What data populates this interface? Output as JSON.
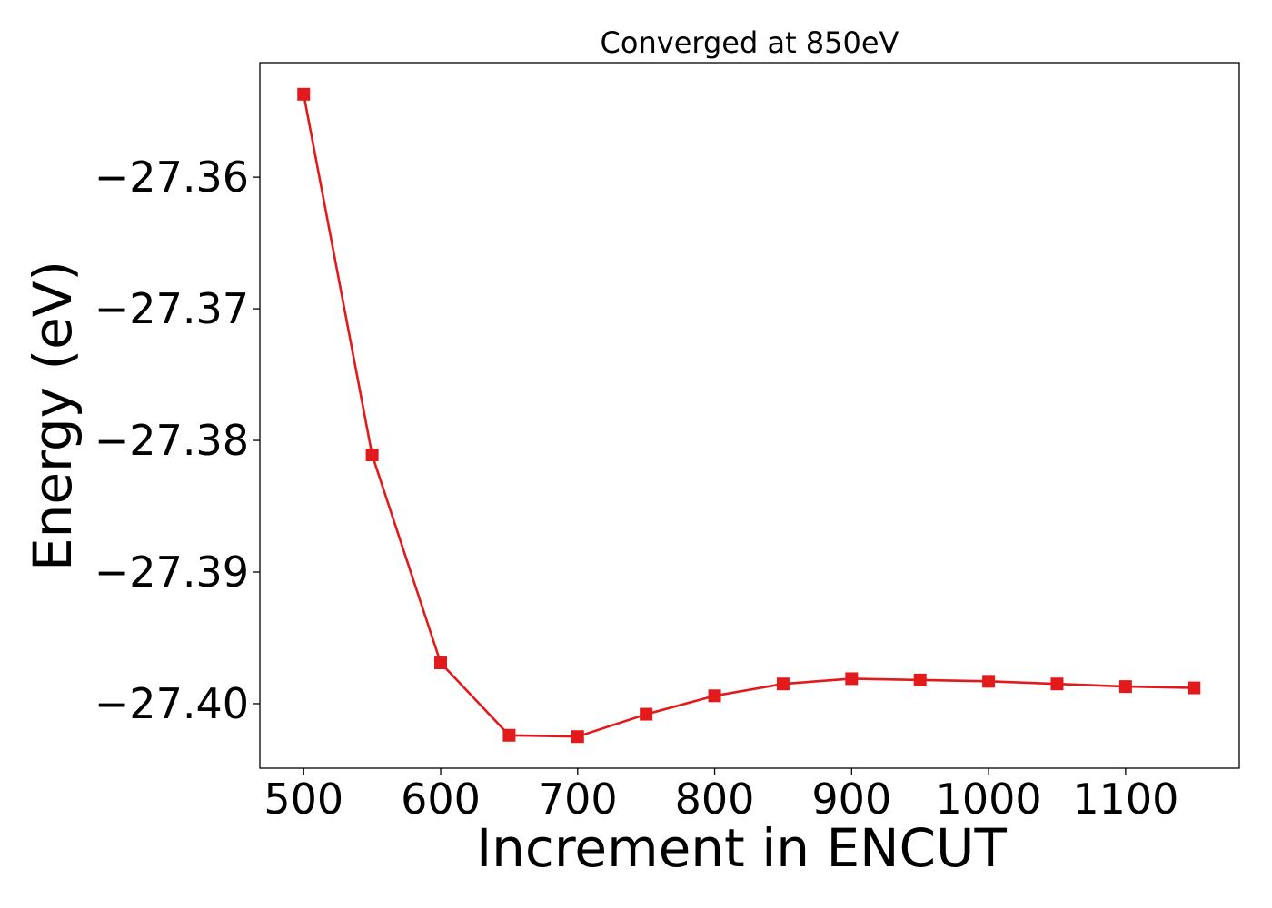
{
  "chart_data": {
    "type": "line",
    "title": "Converged at 850eV",
    "xlabel": "Increment in ENCUT",
    "ylabel": "Energy (eV)",
    "xlim": [
      468,
      1183
    ],
    "ylim": [
      -27.4049,
      -27.3513
    ],
    "xticks": [
      500,
      600,
      700,
      800,
      900,
      1000,
      1100
    ],
    "xtick_labels": [
      "500",
      "600",
      "700",
      "800",
      "900",
      "1000",
      "1100"
    ],
    "yticks": [
      -27.36,
      -27.37,
      -27.38,
      -27.39,
      -27.4
    ],
    "ytick_labels": [
      "−27.36",
      "−27.37",
      "−27.38",
      "−27.39",
      "−27.40"
    ],
    "grid": false,
    "legend": "none",
    "colors": {
      "line": "#e31a1c",
      "marker": "#e31a1c"
    },
    "series": [
      {
        "marker": "square",
        "x": [
          500,
          550,
          600,
          650,
          700,
          750,
          800,
          850,
          900,
          950,
          1000,
          1050,
          1100,
          1150
        ],
        "y": [
          -27.3537,
          -27.3811,
          -27.3969,
          -27.4024,
          -27.4025,
          -27.4008,
          -27.3994,
          -27.3985,
          -27.3981,
          -27.3982,
          -27.3983,
          -27.3985,
          -27.3987,
          -27.3988
        ]
      }
    ]
  }
}
